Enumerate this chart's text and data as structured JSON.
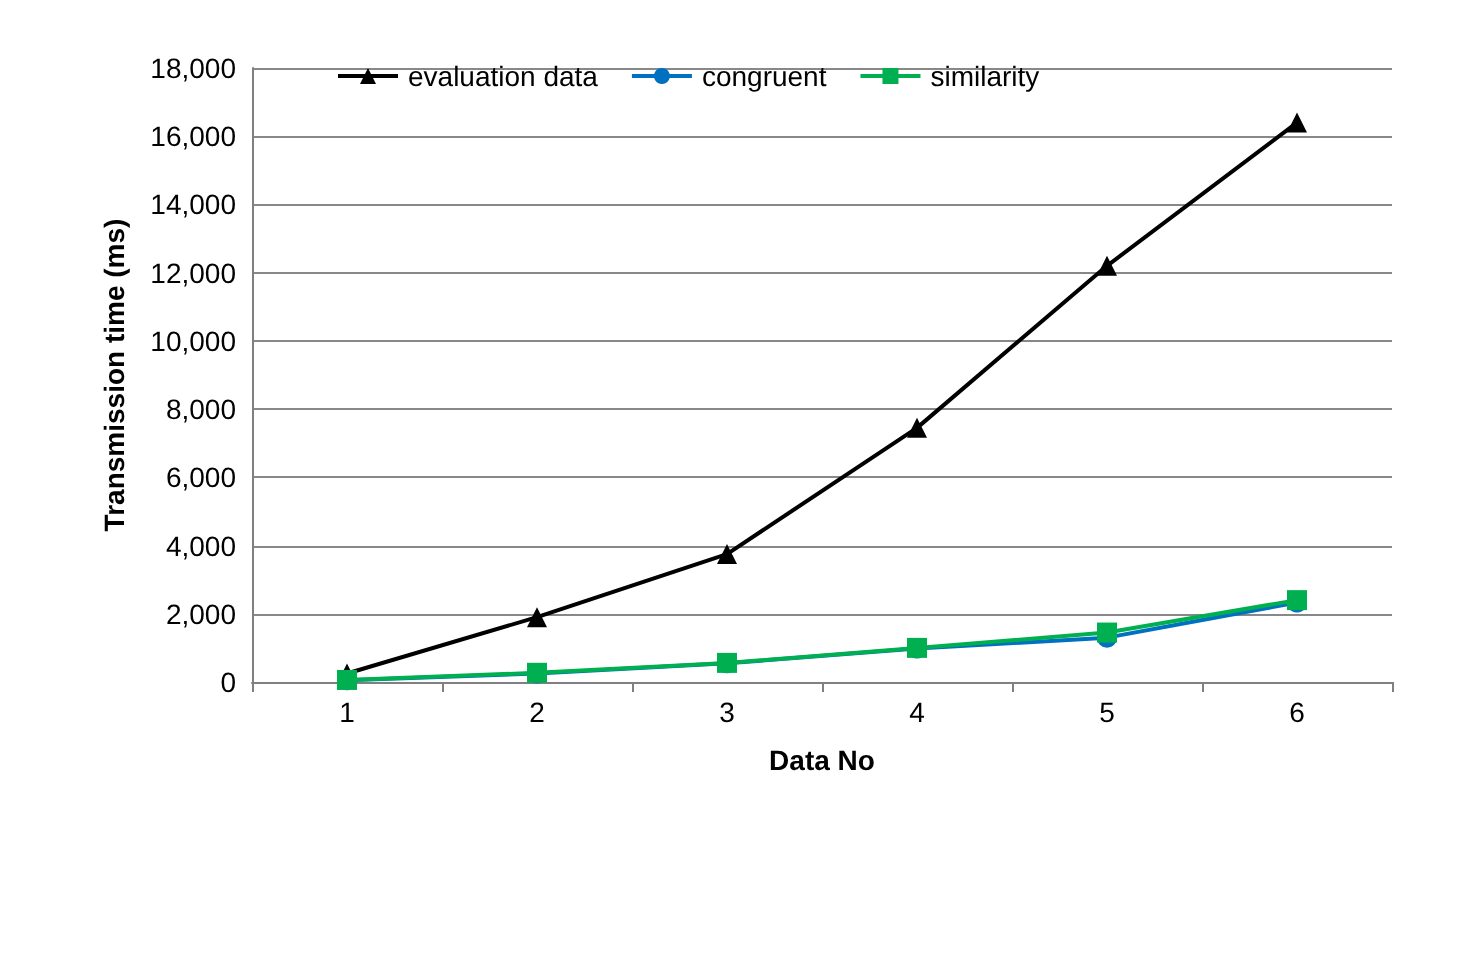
{
  "chart_data": {
    "type": "line",
    "xlabel": "Data No",
    "ylabel": "Transmission time (ms)",
    "categories": [
      "1",
      "2",
      "3",
      "4",
      "5",
      "6"
    ],
    "series": [
      {
        "name": "evaluation data",
        "color": "#000000",
        "marker": "triangle",
        "values": [
          250,
          1900,
          3750,
          7450,
          12200,
          16400
        ]
      },
      {
        "name": "congruent",
        "color": "#0070c0",
        "marker": "circle",
        "values": [
          50,
          250,
          550,
          980,
          1300,
          2330
        ]
      },
      {
        "name": "similarity",
        "color": "#00b050",
        "marker": "square",
        "values": [
          60,
          270,
          560,
          1000,
          1450,
          2400
        ]
      }
    ],
    "ylim": [
      0,
      18000
    ],
    "yticks": [
      0,
      {
        "value": 2000,
        "label": "2,000"
      },
      {
        "value": 4000,
        "label": "4,000"
      },
      {
        "value": 6000,
        "label": "6,000"
      },
      {
        "value": 8000,
        "label": "8,000"
      },
      {
        "value": 10000,
        "label": "10,000"
      },
      {
        "value": 12000,
        "label": "12,000"
      },
      {
        "value": 14000,
        "label": "14,000"
      },
      {
        "value": 16000,
        "label": "16,000"
      },
      {
        "value": 18000,
        "label": "18,000"
      }
    ],
    "grid": "y",
    "legend": "top left"
  }
}
